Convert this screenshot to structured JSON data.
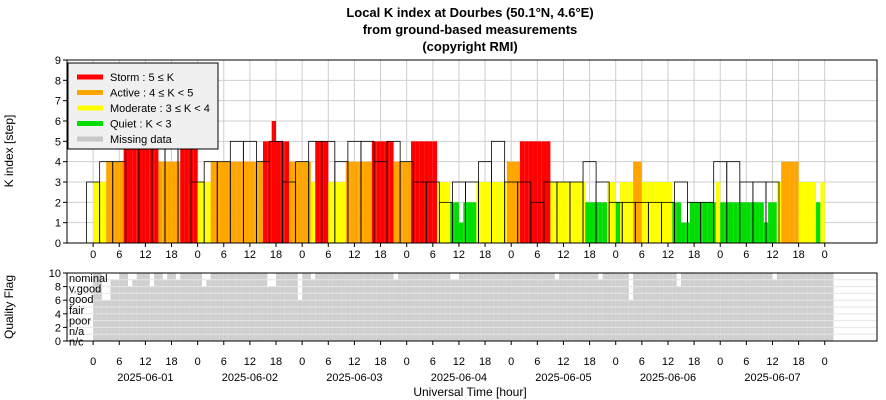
{
  "chart_data": [
    {
      "type": "bar",
      "title": "Local K index at Dourbes (50.1°N, 4.6°E)",
      "subtitle": "from ground-based measurements",
      "copyright": "(copyright RMI)",
      "ylabel": "K index [step]",
      "ylim": [
        0,
        9
      ],
      "yticks": [
        "0",
        "1",
        "2",
        "3",
        "4",
        "5",
        "6",
        "7",
        "8",
        "9"
      ],
      "xticks": [
        "0",
        "6",
        "12",
        "18",
        "0",
        "6",
        "12",
        "18",
        "0",
        "6",
        "12",
        "18",
        "0",
        "6",
        "12",
        "18",
        "0",
        "6",
        "12",
        "18",
        "0",
        "6",
        "12",
        "18",
        "0",
        "6",
        "12",
        "18",
        "0"
      ],
      "grid": true,
      "legend_position": "top-left",
      "legend": [
        {
          "label": "Storm : 5 ≤ K",
          "color": "#ff0000"
        },
        {
          "label": "Active : 4 ≤ K < 5",
          "color": "#ffa500"
        },
        {
          "label": "Moderate : 3 ≤ K < 4",
          "color": "#ffff00"
        },
        {
          "label": "Quiet : K < 3",
          "color": "#00dd00"
        },
        {
          "label": "Missing data",
          "color": "#c8c8c8"
        }
      ],
      "three_hour_k": [
        3,
        4,
        4,
        5,
        5,
        5,
        6,
        5,
        3,
        4,
        4,
        5,
        5,
        4,
        5,
        3,
        4,
        5,
        5,
        4,
        5,
        5,
        4,
        5,
        4,
        3,
        3,
        2,
        3,
        3,
        4,
        5,
        3,
        3,
        2,
        3,
        3,
        3,
        4,
        3,
        2,
        2,
        2,
        2,
        2,
        3,
        2,
        2,
        4,
        4,
        3,
        3,
        3,
        0,
        0,
        0
      ],
      "k_values": [
        3,
        3,
        3,
        4,
        4,
        4,
        4,
        5,
        5,
        5,
        5,
        5,
        5,
        5,
        5,
        4,
        4,
        4,
        4,
        4,
        6,
        6,
        6,
        5,
        3,
        3,
        3,
        4,
        4,
        4,
        4,
        4,
        4,
        4,
        4,
        4,
        4,
        4,
        4,
        5,
        5,
        6,
        5,
        5,
        5,
        4,
        4,
        4,
        4,
        4,
        3,
        5,
        5,
        5,
        3,
        3,
        3,
        3,
        4,
        4,
        4,
        4,
        4,
        4,
        5,
        5,
        5,
        5,
        5,
        4,
        4,
        4,
        4,
        5,
        5,
        5,
        5,
        5,
        5,
        3,
        3,
        3,
        2,
        2,
        1,
        2,
        2,
        2,
        3,
        3,
        3,
        3,
        3,
        3,
        3,
        4,
        4,
        4,
        5,
        5,
        5,
        5,
        5,
        5,
        5,
        3,
        3,
        3,
        3,
        3,
        3,
        3,
        3,
        2,
        2,
        2,
        2,
        2,
        3,
        3,
        2,
        3,
        3,
        3,
        4,
        4,
        3,
        3,
        3,
        3,
        3,
        3,
        3,
        2,
        2,
        1,
        1,
        2,
        2,
        2,
        2,
        2,
        2,
        3,
        2,
        2,
        2,
        2,
        2,
        2,
        2,
        2,
        2,
        2,
        1,
        2,
        2,
        3,
        4,
        4,
        4,
        4,
        3,
        3,
        3,
        3,
        2,
        3,
        null,
        null,
        null,
        null,
        null,
        null,
        null
      ],
      "quality_ylabel": "Quality Flag",
      "quality_ylim": [
        0,
        10
      ],
      "quality_yticks": [
        "0",
        "2",
        "4",
        "6",
        "8",
        "10"
      ],
      "quality_levels": [
        "nominal",
        "v.good",
        "good",
        "fair",
        "poor",
        "n/a",
        "n/c"
      ],
      "quality_values": [
        10,
        10,
        6,
        6,
        9,
        9,
        10,
        10,
        8,
        9,
        10,
        10,
        10,
        8,
        10,
        10,
        9,
        10,
        10,
        9,
        10,
        10,
        10,
        10,
        10,
        8,
        9,
        10,
        10,
        10,
        10,
        10,
        10,
        10,
        10,
        10,
        10,
        10,
        10,
        10,
        8,
        8,
        10,
        10,
        10,
        10,
        10,
        6,
        10,
        10,
        9,
        10,
        10,
        10,
        10,
        10,
        10,
        10,
        10,
        10,
        10,
        10,
        10,
        10,
        10,
        10,
        10,
        10,
        10,
        9,
        10,
        10,
        10,
        10,
        10,
        10,
        10,
        10,
        10,
        10,
        10,
        10,
        9,
        9,
        10,
        10,
        10,
        10,
        10,
        10,
        10,
        10,
        10,
        10,
        10,
        10,
        10,
        10,
        10,
        10,
        10,
        10,
        10,
        10,
        10,
        10,
        9,
        10,
        10,
        10,
        10,
        10,
        10,
        10,
        10,
        10,
        9,
        10,
        10,
        10,
        10,
        10,
        10,
        6,
        10,
        10,
        10,
        10,
        10,
        10,
        10,
        10,
        10,
        10,
        8,
        10,
        10,
        10,
        10,
        10,
        10,
        10,
        10,
        10,
        10,
        10,
        10,
        10,
        10,
        10,
        10,
        10,
        10,
        10,
        10,
        10,
        9,
        10,
        10,
        10,
        10,
        10,
        10,
        10,
        10,
        10,
        10,
        10,
        10,
        10,
        0,
        0,
        0,
        0,
        0,
        0,
        0
      ],
      "xdates": [
        "2025-06-01",
        "2025-06-02",
        "2025-06-03",
        "2025-06-04",
        "2025-06-05",
        "2025-06-06",
        "2025-06-07"
      ],
      "xlabel": "Universal Time [hour]"
    }
  ]
}
